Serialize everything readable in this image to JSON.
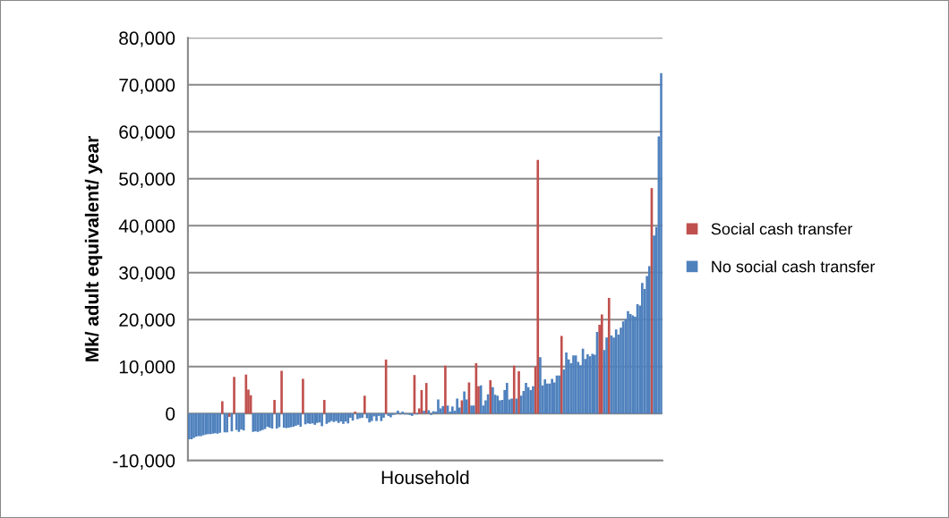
{
  "chart_data": {
    "type": "bar",
    "xlabel": "Household",
    "ylabel": "Mk/ adult equivalent/ year",
    "categories": [
      null,
      null,
      null,
      null,
      null,
      null,
      null,
      null,
      null,
      null,
      null,
      null,
      null,
      null,
      null,
      null,
      null,
      null,
      null,
      null,
      null,
      null,
      null,
      null,
      null,
      null,
      null,
      null,
      null,
      null,
      null,
      null,
      null,
      null,
      null,
      null,
      null,
      null,
      null,
      null,
      null,
      null,
      null,
      null,
      null,
      null,
      null,
      null,
      null,
      null,
      null,
      null,
      null,
      null,
      null,
      null,
      null,
      null,
      null,
      null,
      null,
      null,
      null,
      null,
      null,
      null,
      null,
      null,
      null,
      null,
      null,
      null,
      null,
      null,
      null,
      null,
      null,
      null,
      null,
      null,
      null,
      null,
      null,
      null,
      null,
      null,
      null,
      null,
      null,
      null,
      null,
      null,
      null,
      null,
      null,
      null,
      null,
      null,
      null,
      null,
      null,
      null,
      null,
      null,
      null,
      null,
      null,
      null,
      null,
      null,
      null,
      null,
      null,
      null,
      null,
      null,
      null,
      null,
      null,
      null,
      null,
      null,
      null,
      null,
      null,
      null,
      null,
      null,
      null,
      null,
      null,
      null,
      null,
      null,
      null,
      null,
      null,
      null,
      null,
      null,
      null,
      null,
      null,
      null,
      null,
      null,
      null,
      null,
      null,
      null,
      null,
      null,
      null,
      null,
      null,
      null,
      null,
      null,
      null,
      null,
      null,
      null,
      null,
      null,
      null,
      null,
      null,
      null,
      null,
      null,
      null,
      null,
      null,
      null,
      null,
      null,
      null,
      null,
      null,
      null,
      null,
      null,
      null,
      null,
      null,
      null,
      null,
      null,
      null,
      null,
      null,
      null,
      null,
      null,
      null,
      null,
      null,
      null,
      null,
      null
    ],
    "series": [
      {
        "name": "Social cash transfer",
        "color": "#c0504d",
        "values": [
          null,
          null,
          null,
          null,
          null,
          null,
          null,
          null,
          null,
          null,
          null,
          null,
          null,
          null,
          2600,
          null,
          null,
          -700,
          null,
          7800,
          null,
          null,
          null,
          null,
          8300,
          5100,
          3900,
          null,
          null,
          null,
          null,
          null,
          null,
          null,
          null,
          null,
          2900,
          null,
          null,
          9100,
          null,
          null,
          null,
          null,
          null,
          null,
          null,
          null,
          7400,
          null,
          null,
          null,
          null,
          null,
          null,
          null,
          null,
          2900,
          null,
          null,
          null,
          null,
          null,
          null,
          null,
          null,
          null,
          null,
          null,
          null,
          400,
          null,
          null,
          null,
          3800,
          null,
          null,
          null,
          null,
          null,
          null,
          null,
          null,
          11500,
          null,
          null,
          null,
          null,
          null,
          null,
          null,
          null,
          null,
          null,
          null,
          8200,
          null,
          1100,
          5000,
          null,
          6500,
          null,
          null,
          null,
          null,
          null,
          null,
          null,
          10200,
          null,
          null,
          null,
          null,
          null,
          null,
          2800,
          null,
          null,
          6600,
          null,
          null,
          10700,
          5800,
          null,
          null,
          null,
          null,
          7100,
          null,
          null,
          null,
          null,
          null,
          null,
          null,
          null,
          null,
          10200,
          null,
          9000,
          null,
          null,
          null,
          null,
          null,
          null,
          10000,
          54000,
          null,
          null,
          null,
          null,
          null,
          null,
          null,
          null,
          null,
          16500,
          null,
          null,
          null,
          null,
          null,
          null,
          null,
          null,
          null,
          null,
          null,
          null,
          null,
          null,
          null,
          18900,
          21100,
          null,
          null,
          24600,
          null,
          null,
          null,
          null,
          null,
          null,
          null,
          null,
          null,
          null,
          null,
          null,
          null,
          null,
          null,
          null,
          null,
          48000,
          null,
          null,
          null,
          null
        ]
      },
      {
        "name": "No social cash transfer",
        "color": "#4f81bd",
        "values": [
          -5500,
          -5500,
          -5200,
          -4900,
          -4800,
          -4800,
          -4600,
          -4500,
          -4400,
          -4400,
          -4300,
          -4200,
          -4300,
          -4100,
          null,
          -4000,
          -4000,
          null,
          -3800,
          null,
          -3500,
          -3900,
          -3400,
          -3600,
          null,
          null,
          null,
          -3900,
          -3800,
          -3900,
          -3700,
          -3500,
          -3300,
          -2800,
          -3000,
          -3200,
          null,
          -3200,
          -2900,
          null,
          -3000,
          -3100,
          -3000,
          -2900,
          -2800,
          -2600,
          -2400,
          -2800,
          null,
          -2300,
          -2100,
          -2200,
          -2100,
          -2400,
          -2000,
          -1900,
          -2700,
          null,
          -2200,
          -1900,
          -1600,
          -1800,
          -1600,
          -2000,
          -1700,
          -2200,
          -1700,
          -2100,
          -900,
          -1500,
          null,
          -1200,
          -1000,
          -900,
          null,
          -1000,
          -1900,
          -1600,
          -600,
          -1600,
          -500,
          -1600,
          -900,
          null,
          -500,
          -800,
          -300,
          -200,
          600,
          -200,
          400,
          -200,
          -200,
          -300,
          -500,
          null,
          -200,
          null,
          null,
          600,
          null,
          700,
          -300,
          500,
          400,
          3000,
          1100,
          1600,
          null,
          1700,
          400,
          1500,
          600,
          3200,
          1300,
          null,
          4700,
          3000,
          null,
          1700,
          1700,
          null,
          null,
          6000,
          1700,
          2800,
          4100,
          null,
          5600,
          4000,
          3800,
          2800,
          2900,
          5000,
          6500,
          3000,
          3200,
          null,
          3200,
          null,
          3800,
          4800,
          6500,
          5600,
          5000,
          5800,
          null,
          null,
          12000,
          6000,
          7300,
          6400,
          6400,
          7400,
          6600,
          8100,
          8100,
          null,
          9400,
          13000,
          11500,
          10700,
          12400,
          12400,
          11000,
          10300,
          13800,
          11600,
          12600,
          12200,
          12700,
          12500,
          17400,
          null,
          null,
          13500,
          16200,
          null,
          16600,
          16200,
          17900,
          16800,
          18300,
          19600,
          20100,
          21800,
          21200,
          20900,
          20600,
          23300,
          23000,
          27800,
          26500,
          29300,
          31400,
          null,
          37900,
          39700,
          59000,
          72500
        ]
      }
    ],
    "ylim": [
      -10000,
      80000
    ],
    "yticks": [
      {
        "value": -10000,
        "label": "-10,000"
      },
      0,
      {
        "value": 10000,
        "label": "10,000"
      },
      {
        "value": 20000,
        "label": "20,000"
      },
      {
        "value": 30000,
        "label": "30,000"
      },
      {
        "value": 40000,
        "label": "40,000"
      },
      {
        "value": 50000,
        "label": "50,000"
      },
      {
        "value": 60000,
        "label": "60,000"
      },
      {
        "value": 70000,
        "label": "70,000"
      },
      {
        "value": 80000,
        "label": "80,000"
      }
    ],
    "grid": "y",
    "legend": "right",
    "tick_labels": "y"
  }
}
